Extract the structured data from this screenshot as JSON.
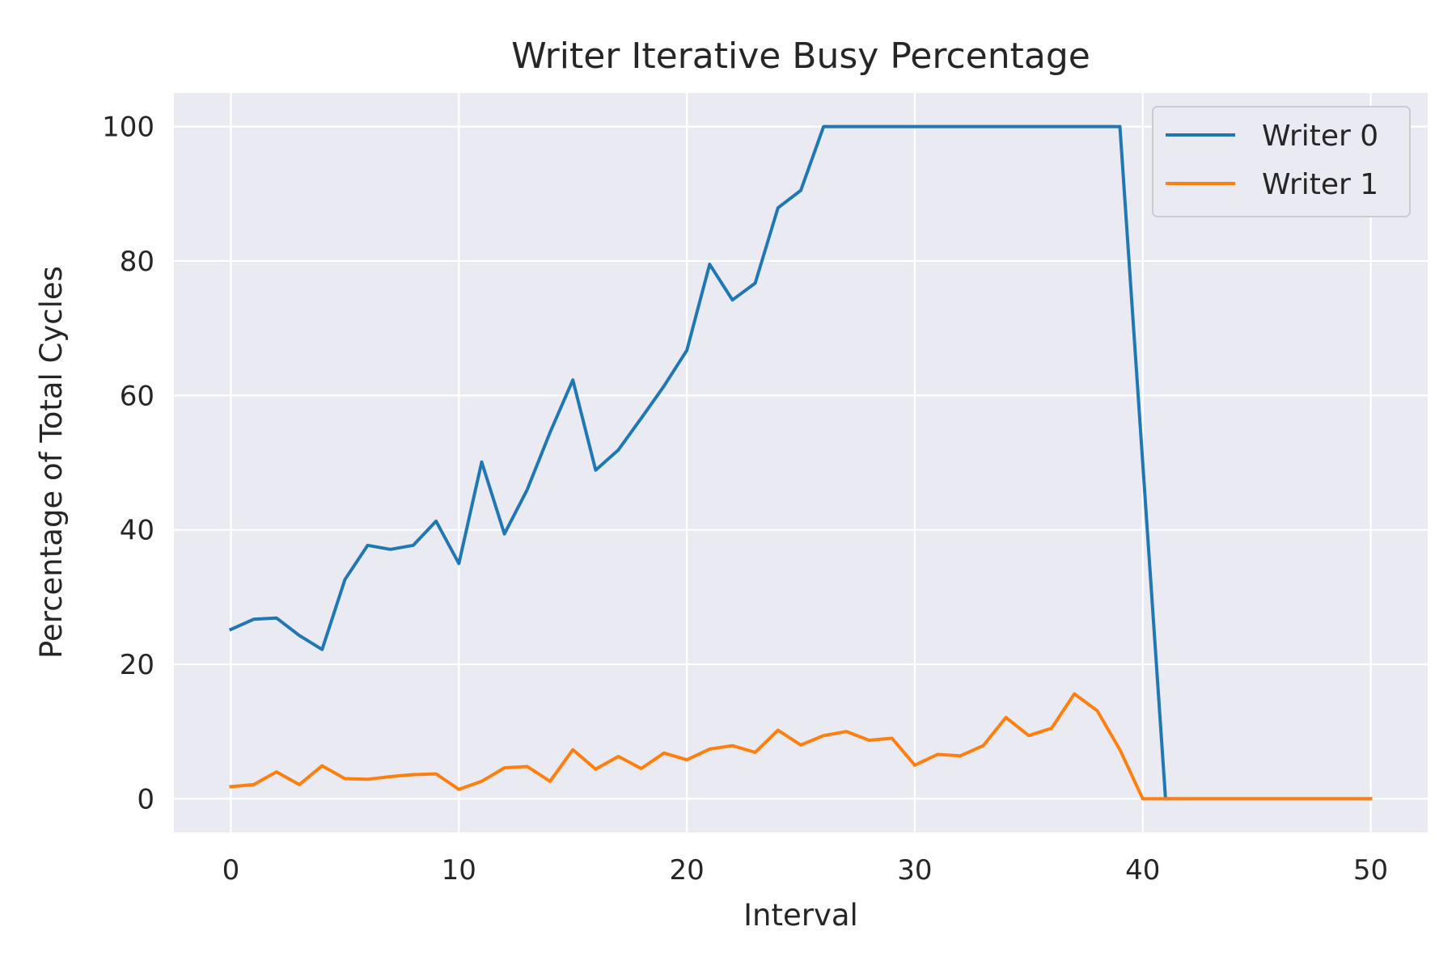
{
  "chart_data": {
    "type": "line",
    "title": "Writer Iterative Busy Percentage",
    "xlabel": "Interval",
    "ylabel": "Percentage of Total Cycles",
    "xlim": [
      -2.5,
      52.5
    ],
    "ylim": [
      -5,
      105
    ],
    "xticks": [
      0,
      10,
      20,
      30,
      40,
      50
    ],
    "yticks": [
      0,
      20,
      40,
      60,
      80,
      100
    ],
    "grid": true,
    "legend_position": "top-right",
    "colors": {
      "plot_background": "#EAEAF2",
      "grid": "#FFFFFF",
      "text": "#262626"
    },
    "x": [
      0,
      1,
      2,
      3,
      4,
      5,
      6,
      7,
      8,
      9,
      10,
      11,
      12,
      13,
      14,
      15,
      16,
      17,
      18,
      19,
      20,
      21,
      22,
      23,
      24,
      25,
      26,
      27,
      28,
      29,
      30,
      31,
      32,
      33,
      34,
      35,
      36,
      37,
      38,
      39,
      40,
      41,
      42,
      43,
      44,
      45,
      46,
      47,
      48,
      49,
      50
    ],
    "series": [
      {
        "name": "Writer 0",
        "color": "#1F77B4",
        "values": [
          25.2,
          26.7,
          26.9,
          24.3,
          22.2,
          32.6,
          37.7,
          37.1,
          37.7,
          41.3,
          35.0,
          50.1,
          39.4,
          46.0,
          54.5,
          62.3,
          48.9,
          51.9,
          56.6,
          61.4,
          66.7,
          79.5,
          74.2,
          76.7,
          87.9,
          90.5,
          100,
          100,
          100,
          100,
          100,
          100,
          100,
          100,
          100,
          100,
          100,
          100,
          100,
          100,
          50,
          0,
          0,
          0,
          0,
          0,
          0,
          0,
          0,
          0,
          0
        ]
      },
      {
        "name": "Writer 1",
        "color": "#FF7F0E",
        "values": [
          1.8,
          2.1,
          4.0,
          2.1,
          4.9,
          3.0,
          2.9,
          3.3,
          3.6,
          3.7,
          1.4,
          2.6,
          4.6,
          4.8,
          2.6,
          7.3,
          4.4,
          6.3,
          4.5,
          6.8,
          5.8,
          7.4,
          7.9,
          6.9,
          10.2,
          8.0,
          9.4,
          10.0,
          8.7,
          9.0,
          5.0,
          6.6,
          6.4,
          7.9,
          12.1,
          9.4,
          10.5,
          15.6,
          13.1,
          7.3,
          0,
          0,
          0,
          0,
          0,
          0,
          0,
          0,
          0,
          0,
          0
        ]
      }
    ]
  }
}
